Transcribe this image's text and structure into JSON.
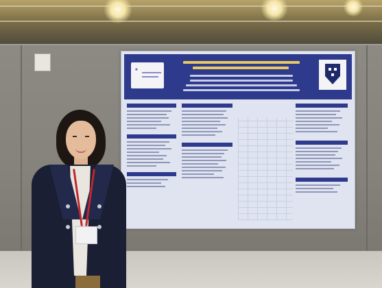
{
  "scene": {
    "description_items": [
      "ceiling",
      "wall",
      "poster",
      "person",
      "floor"
    ]
  },
  "colors": {
    "poster_header": "#2e3a8c",
    "poster_background": "#dfe4f0",
    "wall": "#85837b",
    "jacket": "#1a1f33",
    "lanyard": "#c1272d"
  }
}
